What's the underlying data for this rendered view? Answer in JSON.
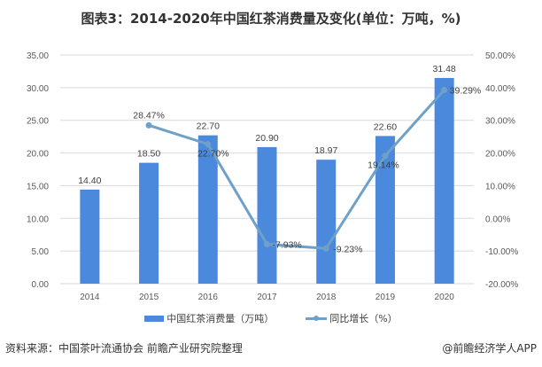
{
  "chart_data": {
    "type": "bar+line",
    "title": "图表3：2014-2020年中国红茶消费量及变化(单位：万吨，%)",
    "categories": [
      "2014",
      "2015",
      "2016",
      "2017",
      "2018",
      "2019",
      "2020"
    ],
    "series": [
      {
        "name": "中国红茶消费量（万吨）",
        "type": "bar",
        "axis": "left",
        "color": "#4a89dc",
        "values": [
          14.4,
          18.5,
          22.7,
          20.9,
          18.97,
          22.6,
          31.48
        ],
        "labels": [
          "14.40",
          "18.50",
          "22.70",
          "20.90",
          "18.97",
          "22.60",
          "31.48"
        ]
      },
      {
        "name": "同比增长（%）",
        "type": "line",
        "axis": "right",
        "color": "#6fa0c8",
        "values": [
          null,
          28.47,
          22.7,
          -7.93,
          -9.23,
          19.14,
          39.29
        ],
        "labels": [
          "",
          "28.47%",
          "22.70%",
          "-7.93%",
          "-9.23%",
          "19.14%",
          "39.29%"
        ]
      }
    ],
    "ylim_left": [
      0,
      35
    ],
    "yticks_left": [
      "0.00",
      "5.00",
      "10.00",
      "15.00",
      "20.00",
      "25.00",
      "30.00",
      "35.00"
    ],
    "ylim_right": [
      -20,
      50
    ],
    "yticks_right": [
      "-20.00%",
      "-10.00%",
      "0.00%",
      "10.00%",
      "20.00%",
      "30.00%",
      "40.00%",
      "50.00%"
    ],
    "grid": true,
    "legend": "bottom"
  },
  "footer": {
    "source": "资料来源：中国茶叶流通协会 前瞻产业研究院整理",
    "credit": "@前瞻经济学人APP"
  }
}
